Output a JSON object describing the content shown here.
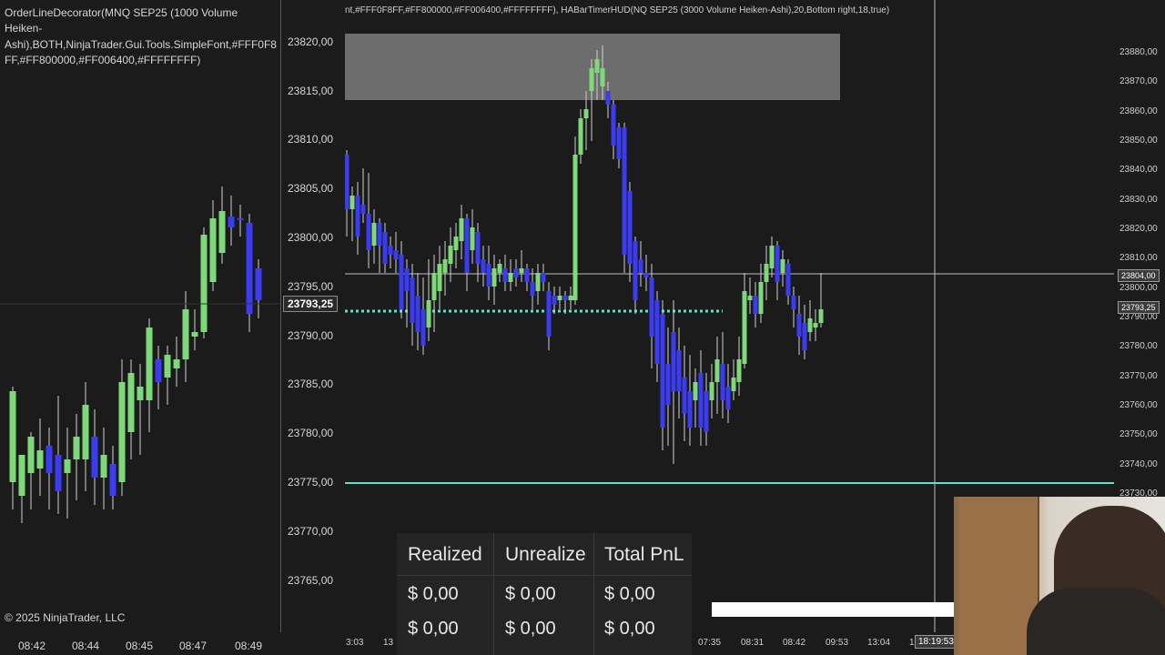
{
  "left_chart": {
    "indicator_text_lines": [
      "OrderLineDecorator(MNQ SEP25 (1000 Volume",
      "Heiken-",
      "Ashi),BOTH,NinjaTrader.Gui.Tools.SimpleFont,#FFF0F8",
      "FF,#FF800000,#FF006400,#FFFFFFFF)"
    ],
    "copyright": "© 2025 NinjaTrader, LLC",
    "time_labels": [
      "08:42",
      "08:44",
      "08:45",
      "08:47",
      "08:49"
    ]
  },
  "price_axis": {
    "labels": [
      "23820,00",
      "23815,00",
      "23810,00",
      "23805,00",
      "23800,00",
      "23795,00",
      "23790,00",
      "23785,00",
      "23780,00",
      "23775,00",
      "23770,00",
      "23765,00"
    ],
    "current_price": "23793,25"
  },
  "main_chart": {
    "indicator_text": "nt,#FFF0F8FF,#FF800000,#FF006400,#FFFFFFFF), HABarTimerHUD(NQ SEP25 (3000 Volume Heiken-Ashi),20,Bottom right,18,true)",
    "time_labels": [
      "3:03",
      "13",
      "07:35",
      "08:31",
      "08:42",
      "09:53",
      "13:04",
      "1",
      "18:19:53"
    ]
  },
  "right_axis": {
    "labels": [
      "23880,00",
      "23870,00",
      "23860,00",
      "23850,00",
      "23840,00",
      "23830,00",
      "23820,00",
      "23810,00",
      "23800,00",
      "23790,00",
      "23780,00",
      "23770,00",
      "23760,00",
      "23750,00",
      "23740,00",
      "23730,00"
    ],
    "crosshair_price": "23804,00",
    "current_price": "23793,25"
  },
  "pnl": {
    "headers": [
      "Realized",
      "Unrealize",
      "Total PnL"
    ],
    "rows": [
      [
        "$ 0,00",
        "$ 0,00",
        "$ 0,00"
      ],
      [
        "$ 0,00",
        "$ 0,00",
        "$ 0,00"
      ]
    ]
  },
  "colors": {
    "bull": "#7fd87a",
    "bear": "#3b3bf0",
    "teal_line": "#5fe0c8",
    "background": "#1b1b1b"
  }
}
